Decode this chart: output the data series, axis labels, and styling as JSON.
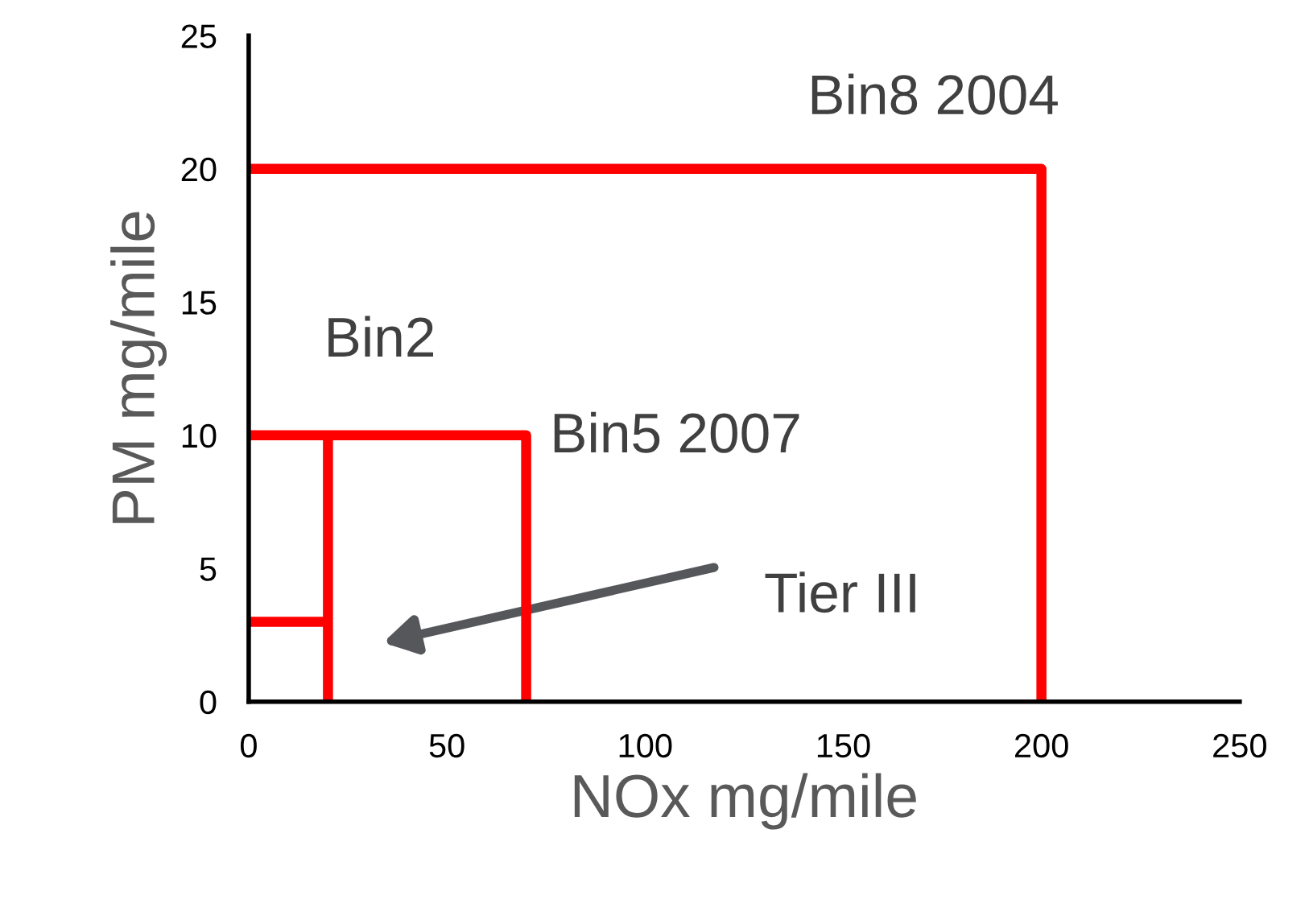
{
  "chart_data": {
    "type": "line",
    "xlabel": "NOx mg/mile",
    "ylabel": "PM mg/mile",
    "xlim": [
      0,
      250
    ],
    "xticks": [
      0,
      50,
      100,
      150,
      200,
      250
    ],
    "ylim": [
      0,
      25
    ],
    "yticks": [
      0,
      5,
      10,
      15,
      20,
      25
    ],
    "grid": false,
    "legend": false,
    "marker": "none",
    "line_style": "solid",
    "series": [
      {
        "color": "#ff0000",
        "x": [
          0,
          200,
          200
        ],
        "values": [
          20,
          20,
          0
        ]
      },
      {
        "color": "#ff0000",
        "x": [
          0,
          70,
          70
        ],
        "values": [
          10,
          10,
          0
        ]
      },
      {
        "color": "#ff0000",
        "x": [
          20,
          20
        ],
        "values": [
          0,
          10
        ]
      },
      {
        "color": "#ff0000",
        "x": [
          0,
          21
        ],
        "values": [
          3,
          3
        ]
      }
    ],
    "annotations": [
      "Bin8 2004",
      "Bin2",
      "Bin5 2007",
      "Tier III"
    ]
  }
}
